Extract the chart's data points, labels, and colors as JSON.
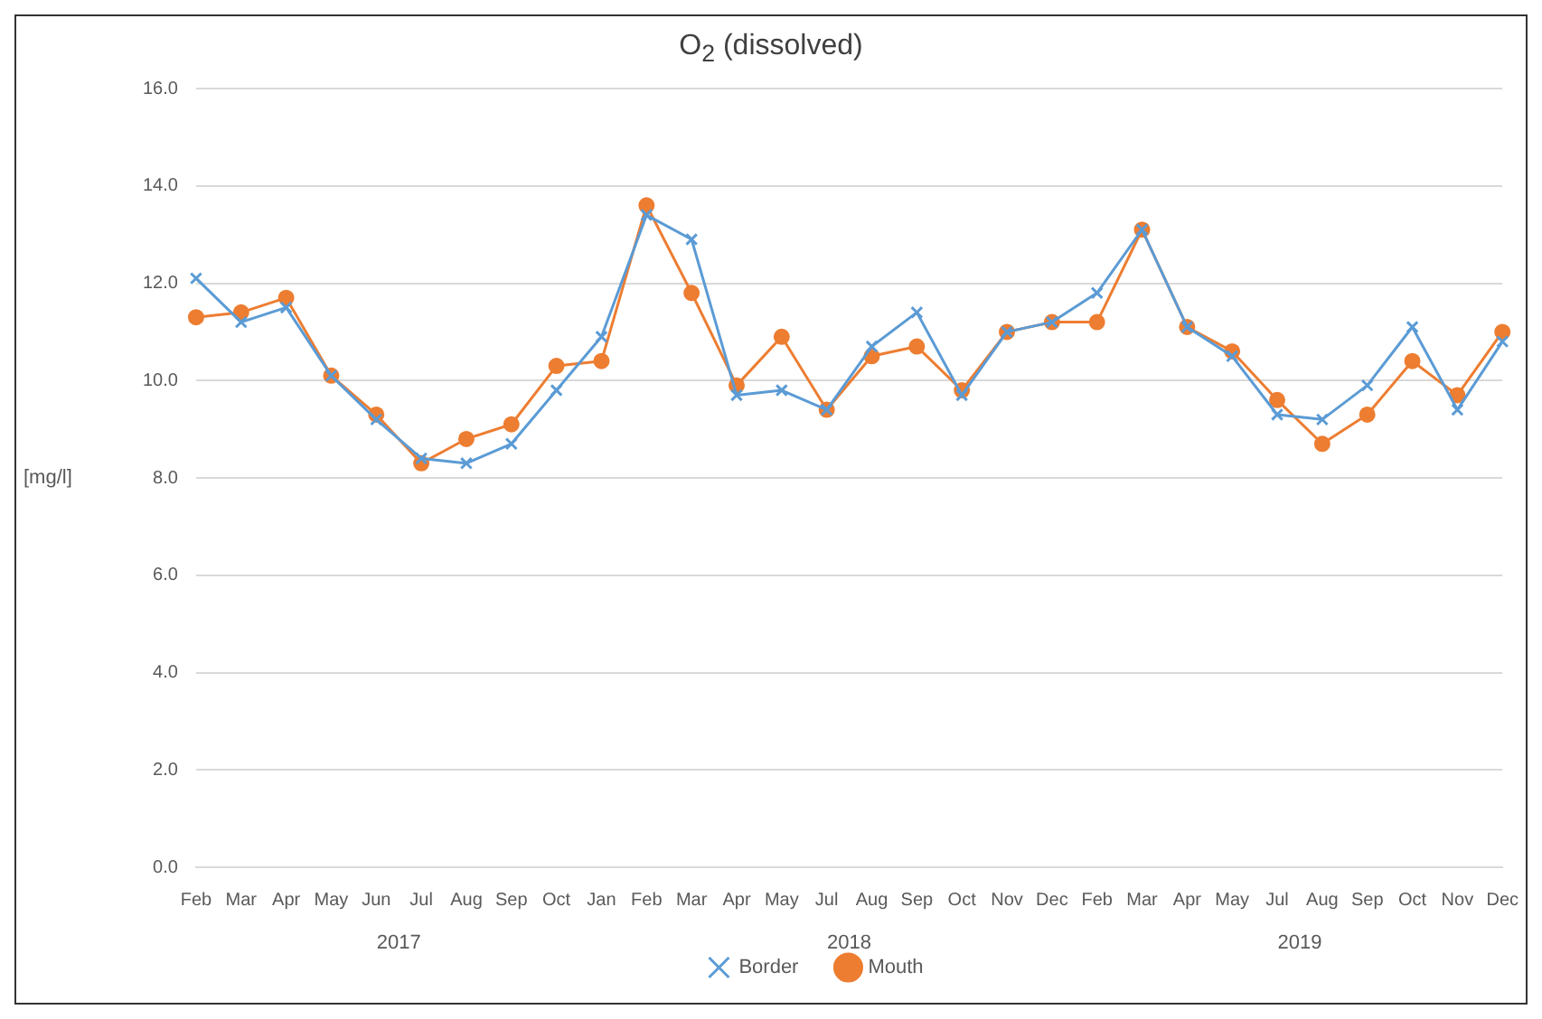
{
  "chart_data": {
    "type": "line",
    "title": "O$_{2}$ (dissolved)",
    "ylabel": "[mg/l]",
    "categories": [
      "Feb",
      "Mar",
      "Apr",
      "May",
      "Jun",
      "Jul",
      "Aug",
      "Sep",
      "Oct",
      "Jan",
      "Feb",
      "Mar",
      "Apr",
      "May",
      "Jul",
      "Aug",
      "Sep",
      "Oct",
      "Nov",
      "Dec",
      "Feb",
      "Mar",
      "Apr",
      "May",
      "Jul",
      "Aug",
      "Sep",
      "Oct",
      "Nov",
      "Dec"
    ],
    "series": [
      {
        "name": "Border",
        "color": "#5b9bd5",
        "marker": "cross",
        "values": [
          12.1,
          11.2,
          11.5,
          10.1,
          9.2,
          8.4,
          8.3,
          8.7,
          9.8,
          10.9,
          13.4,
          12.9,
          9.7,
          9.8,
          9.4,
          10.7,
          11.4,
          9.7,
          11.0,
          11.2,
          11.8,
          13.1,
          11.1,
          10.5,
          9.3,
          9.2,
          9.9,
          11.1,
          9.4,
          10.8
        ]
      },
      {
        "name": "Mouth",
        "color": "#ed7d31",
        "marker": "circle",
        "values": [
          11.3,
          11.4,
          11.7,
          10.1,
          9.3,
          8.3,
          8.8,
          9.1,
          10.3,
          10.4,
          13.6,
          11.8,
          9.9,
          10.9,
          9.4,
          10.5,
          10.7,
          9.8,
          11.0,
          11.2,
          11.2,
          13.1,
          11.1,
          10.6,
          9.6,
          8.7,
          9.3,
          10.4,
          9.7,
          11.0
        ]
      }
    ],
    "annotations": [
      "2017",
      "2018",
      "2019"
    ],
    "ylim": [
      0,
      16
    ],
    "yticks": [
      {
        "value": 0,
        "label": "0.0"
      },
      {
        "value": 2,
        "label": "2.0"
      },
      {
        "value": 4,
        "label": "4.0"
      },
      {
        "value": 6,
        "label": "6.0"
      },
      {
        "value": 8,
        "label": "8.0"
      },
      {
        "value": 10,
        "label": "10.0"
      },
      {
        "value": 12,
        "label": "12.0"
      },
      {
        "value": 14,
        "label": "14.0"
      },
      {
        "value": 16,
        "label": "16.0"
      }
    ],
    "grid": "y",
    "legend": "bottom",
    "line_style": "solid"
  }
}
